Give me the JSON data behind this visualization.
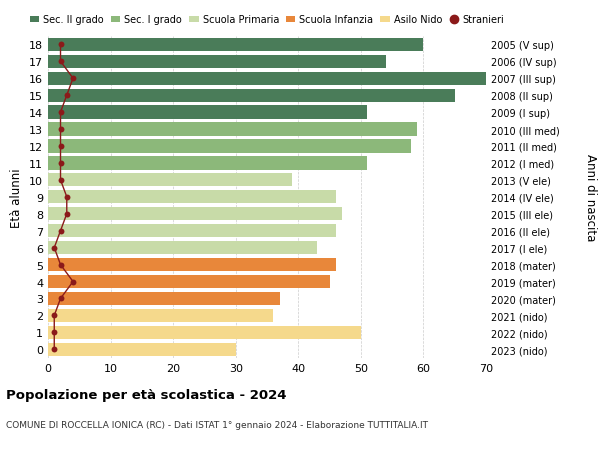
{
  "ages": [
    0,
    1,
    2,
    3,
    4,
    5,
    6,
    7,
    8,
    9,
    10,
    11,
    12,
    13,
    14,
    15,
    16,
    17,
    18
  ],
  "values": [
    30,
    50,
    36,
    37,
    45,
    46,
    43,
    46,
    47,
    46,
    39,
    51,
    58,
    59,
    51,
    65,
    70,
    54,
    60
  ],
  "stranieri": [
    1,
    1,
    1,
    2,
    4,
    2,
    1,
    2,
    3,
    3,
    2,
    2,
    2,
    2,
    2,
    3,
    4,
    2,
    2
  ],
  "right_labels": [
    "2023 (nido)",
    "2022 (nido)",
    "2021 (nido)",
    "2020 (mater)",
    "2019 (mater)",
    "2018 (mater)",
    "2017 (I ele)",
    "2016 (II ele)",
    "2015 (III ele)",
    "2014 (IV ele)",
    "2013 (V ele)",
    "2012 (I med)",
    "2011 (II med)",
    "2010 (III med)",
    "2009 (I sup)",
    "2008 (II sup)",
    "2007 (III sup)",
    "2006 (IV sup)",
    "2005 (V sup)"
  ],
  "bar_colors": [
    "#f5d98c",
    "#f5d98c",
    "#f5d98c",
    "#e8873a",
    "#e8873a",
    "#e8873a",
    "#c8dba8",
    "#c8dba8",
    "#c8dba8",
    "#c8dba8",
    "#c8dba8",
    "#8cb87a",
    "#8cb87a",
    "#8cb87a",
    "#4a7c59",
    "#4a7c59",
    "#4a7c59",
    "#4a7c59",
    "#4a7c59"
  ],
  "legend_labels": [
    "Sec. II grado",
    "Sec. I grado",
    "Scuola Primaria",
    "Scuola Infanzia",
    "Asilo Nido",
    "Stranieri"
  ],
  "legend_colors": [
    "#4a7c59",
    "#8cb87a",
    "#c8dba8",
    "#e8873a",
    "#f5d98c",
    "#8b1a1a"
  ],
  "title_bold": "Popolazione per età scolastica - 2024",
  "subtitle": "COMUNE DI ROCCELLA IONICA (RC) - Dati ISTAT 1° gennaio 2024 - Elaborazione TUTTITALIA.IT",
  "ylabel_left": "Età alunni",
  "ylabel_right": "Anni di nascita",
  "xlim": [
    0,
    70
  ],
  "xticks": [
    0,
    10,
    20,
    30,
    40,
    50,
    60,
    70
  ],
  "bg_color": "#ffffff"
}
